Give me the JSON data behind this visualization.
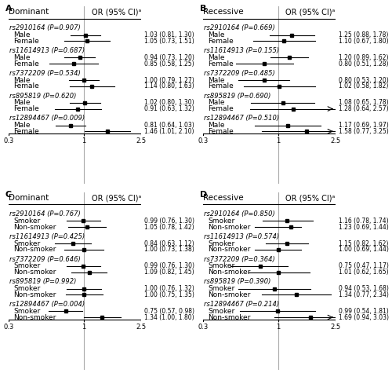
{
  "panels": [
    {
      "label": "A",
      "title": "Dominant",
      "col_header": "OR (95% CI)ᵃ",
      "strat_label": [
        "Male",
        "Female"
      ],
      "snps": [
        {
          "name": "rs2910164 (P=0.907)",
          "or": [
            1.03,
            0.81,
            1.3
          ],
          "or2": [
            1.05,
            0.73,
            1.51
          ]
        },
        {
          "name": "rs11614913 (P=0.687)",
          "or": [
            0.94,
            0.73,
            1.2
          ],
          "or2": [
            0.85,
            0.58,
            1.25
          ]
        },
        {
          "name": "rs7372209 (P=0.534)",
          "or": [
            1.0,
            0.79,
            1.27
          ],
          "or2": [
            1.14,
            0.8,
            1.63
          ]
        },
        {
          "name": "rs895819 (P=0.620)",
          "or": [
            1.02,
            0.8,
            1.3
          ],
          "or2": [
            0.91,
            0.63,
            1.32
          ]
        },
        {
          "name": "rs12894467 (P=0.009)",
          "or": [
            0.81,
            0.64,
            1.03
          ],
          "or2": [
            1.46,
            1.01,
            2.1
          ]
        }
      ],
      "xmin": 0.3,
      "xmax": 2.5,
      "xticks": [
        0.3,
        1,
        2.5
      ],
      "arrow_rows": []
    },
    {
      "label": "B",
      "title": "Recessive",
      "col_header": "OR (95% CI)ᵃ",
      "strat_label": [
        "Male",
        "Female"
      ],
      "snps": [
        {
          "name": "rs2910164 (P=0.669)",
          "or": [
            1.25,
            0.88,
            1.78
          ],
          "or2": [
            1.1,
            0.67,
            1.8
          ]
        },
        {
          "name": "rs11614913 (P=0.155)",
          "or": [
            1.2,
            0.89,
            1.62
          ],
          "or2": [
            0.8,
            0.51,
            1.28
          ]
        },
        {
          "name": "rs7372209 (P=0.485)",
          "or": [
            0.8,
            0.53,
            1.2
          ],
          "or2": [
            1.02,
            0.58,
            1.82
          ]
        },
        {
          "name": "rs895819 (P=0.690)",
          "or": [
            1.08,
            0.65,
            1.78
          ],
          "or2": [
            1.28,
            0.64,
            2.57
          ]
        },
        {
          "name": "rs12894467 (P=0.510)",
          "or": [
            1.17,
            0.69,
            1.97
          ],
          "or2": [
            1.58,
            0.77,
            3.25
          ]
        }
      ],
      "xmin": 0.3,
      "xmax": 2.5,
      "xticks": [
        0.3,
        1,
        2.5
      ],
      "arrow_rows": [
        3,
        4
      ]
    },
    {
      "label": "C",
      "title": "Dominant",
      "col_header": "OR (95% CI)ᵃ",
      "strat_label": [
        "Smoker",
        "Non-smoker"
      ],
      "snps": [
        {
          "name": "rs2910164 (P=0.767)",
          "or": [
            0.99,
            0.76,
            1.3
          ],
          "or2": [
            1.05,
            0.78,
            1.42
          ]
        },
        {
          "name": "rs11614913 (P=0.425)",
          "or": [
            0.84,
            0.63,
            1.12
          ],
          "or2": [
            1.0,
            0.73,
            1.38
          ]
        },
        {
          "name": "rs7372209 (P=0.646)",
          "or": [
            0.99,
            0.76,
            1.3
          ],
          "or2": [
            1.09,
            0.82,
            1.45
          ]
        },
        {
          "name": "rs895819 (P=0.992)",
          "or": [
            1.0,
            0.76,
            1.32
          ],
          "or2": [
            1.0,
            0.75,
            1.35
          ]
        },
        {
          "name": "rs12894467 (P=0.004)",
          "or": [
            0.75,
            0.57,
            0.98
          ],
          "or2": [
            1.34,
            1.0,
            1.8
          ]
        }
      ],
      "xmin": 0.3,
      "xmax": 2.5,
      "xticks": [
        0.3,
        1,
        2.5
      ],
      "arrow_rows": []
    },
    {
      "label": "D",
      "title": "Recessive",
      "col_header": "OR (95% CI)ᵃ",
      "strat_label": [
        "Smoker",
        "Non-smoker"
      ],
      "snps": [
        {
          "name": "rs2910164 (P=0.850)",
          "or": [
            1.16,
            0.78,
            1.74
          ],
          "or2": [
            1.23,
            0.69,
            1.44
          ]
        },
        {
          "name": "rs11614913 (P=0.574)",
          "or": [
            1.15,
            0.82,
            1.62
          ],
          "or2": [
            1.0,
            0.69,
            1.44
          ]
        },
        {
          "name": "rs7372209 (P=0.364)",
          "or": [
            0.75,
            0.47,
            1.17
          ],
          "or2": [
            1.01,
            0.62,
            1.65
          ]
        },
        {
          "name": "rs895819 (P=0.390)",
          "or": [
            0.94,
            0.53,
            1.68
          ],
          "or2": [
            1.34,
            0.77,
            2.34
          ]
        },
        {
          "name": "rs12894467 (P=0.214)",
          "or": [
            0.99,
            0.54,
            1.81
          ],
          "or2": [
            1.69,
            0.94,
            3.03
          ]
        }
      ],
      "xmin": 0.3,
      "xmax": 2.5,
      "xticks": [
        0.3,
        1,
        2.5
      ],
      "arrow_rows": [
        4
      ]
    }
  ],
  "bg_color": "#ffffff",
  "line_color": "#000000",
  "text_color": "#000000",
  "marker_color": "#000000",
  "snp_fontsize": 6.0,
  "label_fontsize": 6.5,
  "header_fontsize": 7.0,
  "title_fontsize": 7.5
}
